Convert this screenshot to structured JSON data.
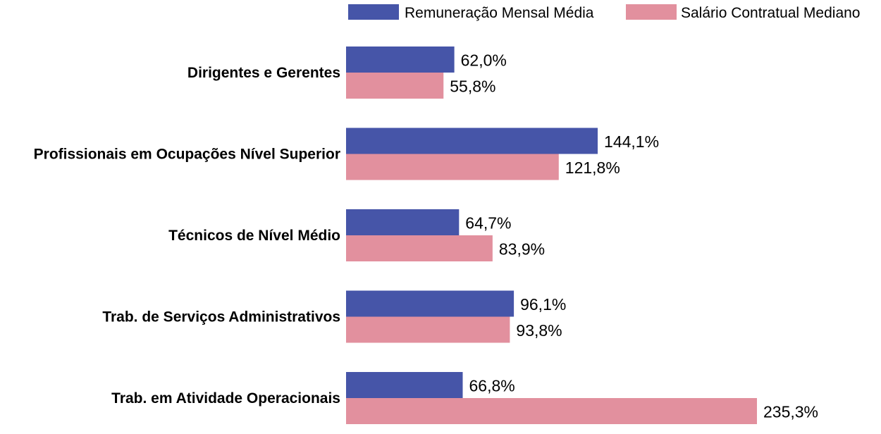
{
  "chart_data": {
    "type": "bar",
    "orientation": "horizontal",
    "categories": [
      "Dirigentes e Gerentes",
      "Profissionais em Ocupações Nível Superior",
      "Técnicos de Nível Médio",
      "Trab. de Serviços Administrativos",
      "Trab. em Atividade Operacionais"
    ],
    "series": [
      {
        "name": "Remuneração Mensal Média",
        "color": "#4655a8",
        "values": [
          62.0,
          144.1,
          64.7,
          96.1,
          66.8
        ],
        "labels": [
          "62,0%",
          "144,1%",
          "64,7%",
          "96,1%",
          "66,8%"
        ]
      },
      {
        "name": "Salário Contratual Mediano",
        "color": "#e2909e",
        "values": [
          55.8,
          121.8,
          83.9,
          93.8,
          235.3
        ],
        "labels": [
          "55,8%",
          "121,8%",
          "83,9%",
          "93,8%",
          "235,3%"
        ]
      }
    ],
    "xlim": [
      0,
      235.3
    ],
    "legend_position": "top-right",
    "grid": false
  }
}
